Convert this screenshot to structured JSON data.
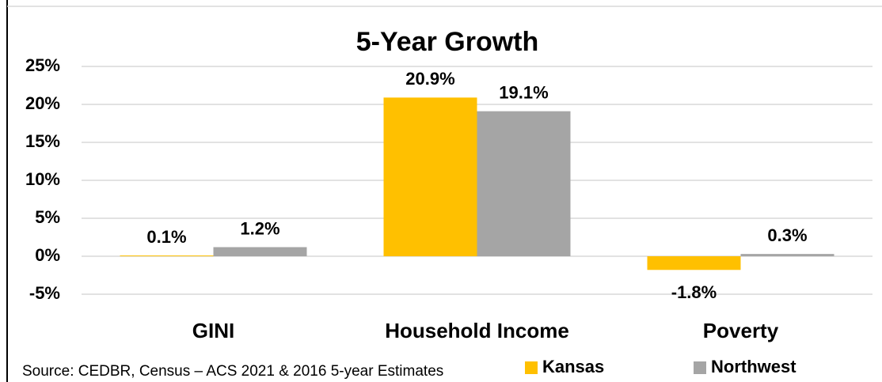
{
  "chart_data": {
    "type": "bar",
    "title": "5-Year Growth",
    "categories": [
      "GINI",
      "Household Income",
      "Poverty"
    ],
    "series": [
      {
        "name": "Kansas",
        "color": "#FFC000",
        "values": [
          0.1,
          20.9,
          -1.8
        ],
        "value_labels": [
          "0.1%",
          "20.9%",
          "-1.8%"
        ]
      },
      {
        "name": "Northwest",
        "color": "#A5A5A5",
        "values": [
          1.2,
          19.1,
          0.3
        ],
        "value_labels": [
          "1.2%",
          "19.1%",
          "0.3%"
        ]
      }
    ],
    "ylim": [
      -5,
      25
    ],
    "yticks": [
      {
        "value": -5,
        "label": "-5%"
      },
      {
        "value": 0,
        "label": "0%"
      },
      {
        "value": 5,
        "label": "5%"
      },
      {
        "value": 10,
        "label": "10%"
      },
      {
        "value": 15,
        "label": "15%"
      },
      {
        "value": 20,
        "label": "20%"
      },
      {
        "value": 25,
        "label": "25%"
      }
    ],
    "grid": true,
    "legend": "bottom-right",
    "source": "Source: CEDBR, Census – ACS 2021 & 2016 5-year Estimates"
  }
}
